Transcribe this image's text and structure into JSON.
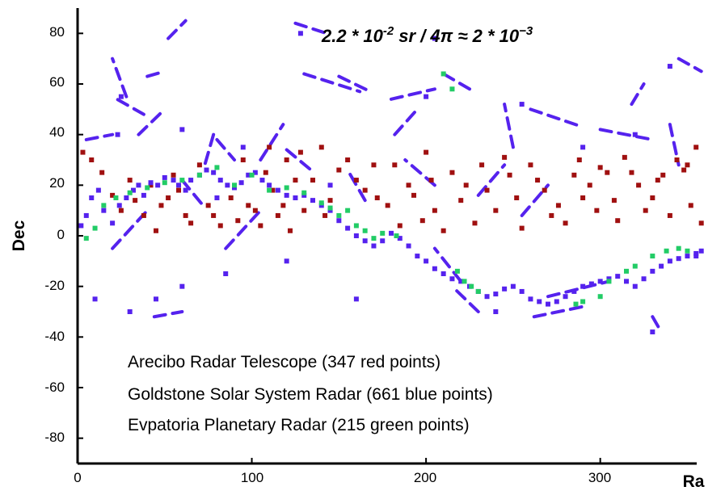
{
  "chart_data": {
    "type": "scatter",
    "xlabel": "Ra",
    "ylabel": "Dec",
    "xlim": [
      0,
      360
    ],
    "ylim": [
      -90,
      90
    ],
    "x_ticks": [
      "0",
      "100",
      "200",
      "300"
    ],
    "y_ticks": [
      "-80",
      "-60",
      "-40",
      "-20",
      "0",
      "20",
      "40",
      "60",
      "80"
    ],
    "grid": false,
    "annotation": {
      "prefix": "2.2 * 10",
      "exp1": "-2",
      "middle": " sr / 4π ≈ 2 * 10",
      "exp2": "−3"
    },
    "legend_lines": [
      "Arecibo Radar Telescope (347 red points)",
      "Goldstone Solar System Radar (661 blue points)",
      "Evpatoria Planetary Radar (215 green points)"
    ],
    "colors": {
      "red": "#a01010",
      "blue": "#5522ee",
      "green": "#22cc66"
    },
    "series": [
      {
        "color": "red",
        "points": [
          [
            3,
            33
          ],
          [
            8,
            30
          ],
          [
            14,
            25
          ],
          [
            20,
            16
          ],
          [
            25,
            10
          ],
          [
            30,
            22
          ],
          [
            33,
            14
          ],
          [
            38,
            8
          ],
          [
            42,
            20
          ],
          [
            45,
            2
          ],
          [
            48,
            12
          ],
          [
            52,
            15
          ],
          [
            55,
            24
          ],
          [
            58,
            18
          ],
          [
            62,
            8
          ],
          [
            65,
            5
          ],
          [
            70,
            28
          ],
          [
            75,
            12
          ],
          [
            78,
            8
          ],
          [
            82,
            4
          ],
          [
            88,
            15
          ],
          [
            92,
            6
          ],
          [
            95,
            30
          ],
          [
            98,
            12
          ],
          [
            102,
            10
          ],
          [
            105,
            4
          ],
          [
            108,
            25
          ],
          [
            110,
            35
          ],
          [
            112,
            18
          ],
          [
            115,
            8
          ],
          [
            118,
            12
          ],
          [
            120,
            30
          ],
          [
            122,
            2
          ],
          [
            125,
            22
          ],
          [
            128,
            33
          ],
          [
            130,
            10
          ],
          [
            135,
            22
          ],
          [
            140,
            35
          ],
          [
            142,
            8
          ],
          [
            145,
            14
          ],
          [
            150,
            26
          ],
          [
            155,
            30
          ],
          [
            160,
            22
          ],
          [
            165,
            18
          ],
          [
            170,
            28
          ],
          [
            172,
            15
          ],
          [
            178,
            12
          ],
          [
            182,
            28
          ],
          [
            185,
            4
          ],
          [
            190,
            20
          ],
          [
            193,
            16
          ],
          [
            198,
            6
          ],
          [
            200,
            33
          ],
          [
            203,
            22
          ],
          [
            205,
            10
          ],
          [
            210,
            2
          ],
          [
            215,
            25
          ],
          [
            220,
            14
          ],
          [
            223,
            20
          ],
          [
            228,
            5
          ],
          [
            232,
            28
          ],
          [
            235,
            18
          ],
          [
            240,
            10
          ],
          [
            245,
            31
          ],
          [
            248,
            24
          ],
          [
            252,
            15
          ],
          [
            255,
            3
          ],
          [
            260,
            28
          ],
          [
            264,
            22
          ],
          [
            268,
            18
          ],
          [
            272,
            8
          ],
          [
            276,
            12
          ],
          [
            280,
            5
          ],
          [
            285,
            24
          ],
          [
            288,
            30
          ],
          [
            290,
            15
          ],
          [
            294,
            20
          ],
          [
            298,
            10
          ],
          [
            300,
            27
          ],
          [
            304,
            25
          ],
          [
            308,
            14
          ],
          [
            310,
            6
          ],
          [
            314,
            31
          ],
          [
            318,
            25
          ],
          [
            322,
            20
          ],
          [
            326,
            10
          ],
          [
            330,
            15
          ],
          [
            333,
            22
          ],
          [
            336,
            24
          ],
          [
            340,
            8
          ],
          [
            344,
            30
          ],
          [
            348,
            26
          ],
          [
            350,
            28
          ],
          [
            352,
            12
          ],
          [
            355,
            35
          ],
          [
            358,
            5
          ]
        ]
      },
      {
        "color": "blue",
        "points": [
          [
            2,
            4
          ],
          [
            5,
            8
          ],
          [
            8,
            15
          ],
          [
            12,
            18
          ],
          [
            15,
            10
          ],
          [
            20,
            5
          ],
          [
            24,
            12
          ],
          [
            28,
            15
          ],
          [
            32,
            18
          ],
          [
            35,
            20
          ],
          [
            38,
            16
          ],
          [
            42,
            21
          ],
          [
            46,
            20
          ],
          [
            50,
            23
          ],
          [
            55,
            22
          ],
          [
            58,
            20
          ],
          [
            62,
            18
          ],
          [
            65,
            22
          ],
          [
            70,
            24
          ],
          [
            74,
            26
          ],
          [
            78,
            25
          ],
          [
            82,
            22
          ],
          [
            86,
            20
          ],
          [
            90,
            19
          ],
          [
            94,
            21
          ],
          [
            98,
            24
          ],
          [
            102,
            25
          ],
          [
            106,
            22
          ],
          [
            110,
            20
          ],
          [
            115,
            18
          ],
          [
            120,
            16
          ],
          [
            125,
            15
          ],
          [
            130,
            16
          ],
          [
            135,
            14
          ],
          [
            140,
            12
          ],
          [
            145,
            10
          ],
          [
            150,
            6
          ],
          [
            155,
            3
          ],
          [
            160,
            0
          ],
          [
            165,
            -2
          ],
          [
            170,
            -4
          ],
          [
            175,
            -2
          ],
          [
            180,
            1
          ],
          [
            185,
            -1
          ],
          [
            190,
            -4
          ],
          [
            195,
            -8
          ],
          [
            200,
            -10
          ],
          [
            205,
            -13
          ],
          [
            210,
            -15
          ],
          [
            215,
            -17
          ],
          [
            220,
            -18
          ],
          [
            225,
            -20
          ],
          [
            230,
            -22
          ],
          [
            235,
            -24
          ],
          [
            240,
            -23
          ],
          [
            245,
            -21
          ],
          [
            250,
            -20
          ],
          [
            255,
            -22
          ],
          [
            260,
            -25
          ],
          [
            265,
            -26
          ],
          [
            270,
            -27
          ],
          [
            275,
            -26
          ],
          [
            280,
            -24
          ],
          [
            285,
            -22
          ],
          [
            290,
            -20
          ],
          [
            295,
            -19
          ],
          [
            300,
            -18
          ],
          [
            305,
            -17
          ],
          [
            310,
            -16
          ],
          [
            315,
            -18
          ],
          [
            320,
            -20
          ],
          [
            325,
            -17
          ],
          [
            330,
            -14
          ],
          [
            335,
            -12
          ],
          [
            340,
            -10
          ],
          [
            345,
            -9
          ],
          [
            350,
            -8
          ],
          [
            355,
            -7
          ],
          [
            358,
            -6
          ],
          [
            23,
            40
          ],
          [
            60,
            42
          ],
          [
            95,
            35
          ],
          [
            128,
            80
          ],
          [
            30,
            -30
          ],
          [
            45,
            -25
          ],
          [
            85,
            -15
          ],
          [
            120,
            -10
          ],
          [
            205,
            78
          ],
          [
            255,
            52
          ],
          [
            340,
            67
          ],
          [
            25,
            55
          ],
          [
            80,
            15
          ],
          [
            145,
            20
          ],
          [
            200,
            55
          ],
          [
            320,
            40
          ],
          [
            355,
            -8
          ],
          [
            10,
            -25
          ],
          [
            60,
            -20
          ],
          [
            160,
            -25
          ],
          [
            240,
            -30
          ],
          [
            290,
            35
          ],
          [
            330,
            -38
          ]
        ]
      },
      {
        "color": "green",
        "points": [
          [
            5,
            -1
          ],
          [
            10,
            3
          ],
          [
            15,
            12
          ],
          [
            22,
            15
          ],
          [
            30,
            17
          ],
          [
            40,
            19
          ],
          [
            50,
            21
          ],
          [
            60,
            22
          ],
          [
            70,
            24
          ],
          [
            80,
            27
          ],
          [
            90,
            20
          ],
          [
            100,
            24
          ],
          [
            110,
            18
          ],
          [
            120,
            19
          ],
          [
            130,
            17
          ],
          [
            140,
            13
          ],
          [
            145,
            11
          ],
          [
            150,
            8
          ],
          [
            155,
            10
          ],
          [
            160,
            4
          ],
          [
            165,
            2
          ],
          [
            170,
            -1
          ],
          [
            175,
            1
          ],
          [
            183,
            0
          ],
          [
            210,
            64
          ],
          [
            215,
            58
          ],
          [
            218,
            -14
          ],
          [
            222,
            -18
          ],
          [
            226,
            -20
          ],
          [
            230,
            -22
          ],
          [
            286,
            -27
          ],
          [
            290,
            -26
          ],
          [
            300,
            -24
          ],
          [
            305,
            -18
          ],
          [
            315,
            -14
          ],
          [
            320,
            -12
          ],
          [
            330,
            -8
          ],
          [
            338,
            -6
          ],
          [
            345,
            -5
          ],
          [
            350,
            -6
          ]
        ]
      }
    ],
    "tracks": [
      {
        "color": "blue",
        "x": [
          125,
          143
        ],
        "y": [
          84,
          80
        ]
      },
      {
        "color": "blue",
        "x": [
          130,
          162
        ],
        "y": [
          64,
          57
        ]
      },
      {
        "color": "blue",
        "x": [
          35,
          50
        ],
        "y": [
          40,
          50
        ]
      },
      {
        "color": "blue",
        "x": [
          38,
          20
        ],
        "y": [
          48,
          55
        ]
      },
      {
        "color": "blue",
        "x": [
          40,
          50
        ],
        "y": [
          63,
          65
        ]
      },
      {
        "color": "blue",
        "x": [
          28,
          20
        ],
        "y": [
          55,
          70
        ]
      },
      {
        "color": "blue",
        "x": [
          52,
          62
        ],
        "y": [
          78,
          85
        ]
      },
      {
        "color": "blue",
        "x": [
          78,
          73
        ],
        "y": [
          40,
          28
        ]
      },
      {
        "color": "blue",
        "x": [
          150,
          168
        ],
        "y": [
          63,
          57
        ]
      },
      {
        "color": "blue",
        "x": [
          20,
          40
        ],
        "y": [
          -5,
          10
        ]
      },
      {
        "color": "blue",
        "x": [
          85,
          105
        ],
        "y": [
          -5,
          10
        ]
      },
      {
        "color": "blue",
        "x": [
          220,
          205
        ],
        "y": [
          -18,
          -5
        ]
      },
      {
        "color": "blue",
        "x": [
          230,
          215
        ],
        "y": [
          -30,
          -20
        ]
      },
      {
        "color": "blue",
        "x": [
          205,
          188
        ],
        "y": [
          20,
          30
        ]
      },
      {
        "color": "blue",
        "x": [
          225,
          210
        ],
        "y": [
          58,
          64
        ]
      },
      {
        "color": "blue",
        "x": [
          250,
          245
        ],
        "y": [
          35,
          52
        ]
      },
      {
        "color": "blue",
        "x": [
          260,
          290
        ],
        "y": [
          50,
          43
        ]
      },
      {
        "color": "blue",
        "x": [
          300,
          330
        ],
        "y": [
          42,
          38
        ]
      },
      {
        "color": "blue",
        "x": [
          345,
          358
        ],
        "y": [
          70,
          65
        ]
      },
      {
        "color": "blue",
        "x": [
          318,
          325
        ],
        "y": [
          52,
          60
        ]
      },
      {
        "color": "blue",
        "x": [
          340,
          345
        ],
        "y": [
          44,
          28
        ]
      },
      {
        "color": "blue",
        "x": [
          44,
          60
        ],
        "y": [
          -32,
          -30
        ]
      },
      {
        "color": "blue",
        "x": [
          262,
          290
        ],
        "y": [
          -32,
          -28
        ]
      },
      {
        "color": "blue",
        "x": [
          330,
          335
        ],
        "y": [
          -32,
          -38
        ]
      },
      {
        "color": "blue",
        "x": [
          270,
          305
        ],
        "y": [
          -24,
          -18
        ]
      },
      {
        "color": "blue",
        "x": [
          180,
          205
        ],
        "y": [
          54,
          58
        ]
      },
      {
        "color": "blue",
        "x": [
          182,
          195
        ],
        "y": [
          40,
          50
        ]
      },
      {
        "color": "blue",
        "x": [
          5,
          20
        ],
        "y": [
          38,
          40
        ]
      },
      {
        "color": "blue",
        "x": [
          105,
          118
        ],
        "y": [
          30,
          44
        ]
      },
      {
        "color": "blue",
        "x": [
          120,
          134
        ],
        "y": [
          34,
          26
        ]
      },
      {
        "color": "blue",
        "x": [
          230,
          245
        ],
        "y": [
          16,
          28
        ]
      },
      {
        "color": "blue",
        "x": [
          255,
          270
        ],
        "y": [
          8,
          20
        ]
      },
      {
        "color": "blue",
        "x": [
          165,
          155
        ],
        "y": [
          14,
          26
        ]
      },
      {
        "color": "blue",
        "x": [
          60,
          72
        ],
        "y": [
          22,
          12
        ]
      },
      {
        "color": "blue",
        "x": [
          80,
          90
        ],
        "y": [
          38,
          30
        ]
      }
    ]
  }
}
